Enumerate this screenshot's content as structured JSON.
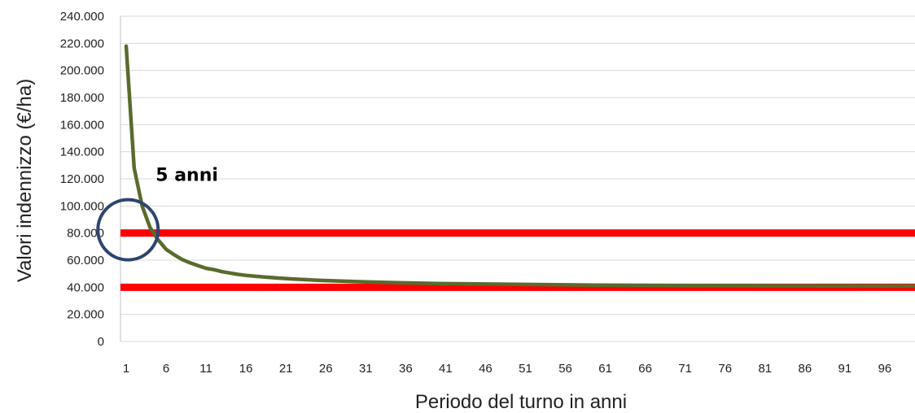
{
  "chart_data": {
    "type": "line",
    "title": "",
    "xlabel": "Periodo del turno in anni",
    "ylabel": "Valori indennizzo (€/ha)",
    "ylim": [
      0,
      240000
    ],
    "xlim": [
      1,
      100
    ],
    "yticks": [
      "0",
      "20.000",
      "40.000",
      "60.000",
      "80.000",
      "100.000",
      "120.000",
      "140.000",
      "160.000",
      "180.000",
      "200.000",
      "220.000",
      "240.000"
    ],
    "xticks": [
      "1",
      "6",
      "11",
      "16",
      "21",
      "26",
      "31",
      "36",
      "41",
      "46",
      "51",
      "56",
      "61",
      "66",
      "71",
      "76",
      "81",
      "86",
      "91",
      "96"
    ],
    "grid": true,
    "series": [
      {
        "color": "#5a6b2c",
        "points": [
          [
            1,
            218000
          ],
          [
            2,
            128000
          ],
          [
            3,
            100000
          ],
          [
            4,
            84000
          ],
          [
            5,
            75000
          ],
          [
            6,
            68000
          ],
          [
            7,
            64000
          ],
          [
            8,
            60500
          ],
          [
            9,
            58000
          ],
          [
            10,
            56000
          ],
          [
            11,
            54000
          ],
          [
            12,
            53000
          ],
          [
            13,
            51500
          ],
          [
            14,
            50500
          ],
          [
            15,
            49500
          ],
          [
            16,
            48800
          ],
          [
            18,
            47700
          ],
          [
            20,
            46800
          ],
          [
            22,
            46100
          ],
          [
            25,
            45200
          ],
          [
            28,
            44600
          ],
          [
            31,
            44000
          ],
          [
            35,
            43400
          ],
          [
            40,
            42800
          ],
          [
            45,
            42400
          ],
          [
            50,
            42100
          ],
          [
            60,
            41600
          ],
          [
            70,
            41300
          ],
          [
            80,
            41100
          ],
          [
            90,
            40900
          ],
          [
            100,
            40800
          ]
        ]
      }
    ],
    "reference_lines": [
      {
        "y": 80000,
        "color": "#ff0000"
      },
      {
        "y": 40000,
        "color": "#ff0000"
      }
    ],
    "annotations": [
      {
        "text": "5 anni",
        "x": 5,
        "y": 80000,
        "circle_color": "#2e4470"
      }
    ]
  }
}
